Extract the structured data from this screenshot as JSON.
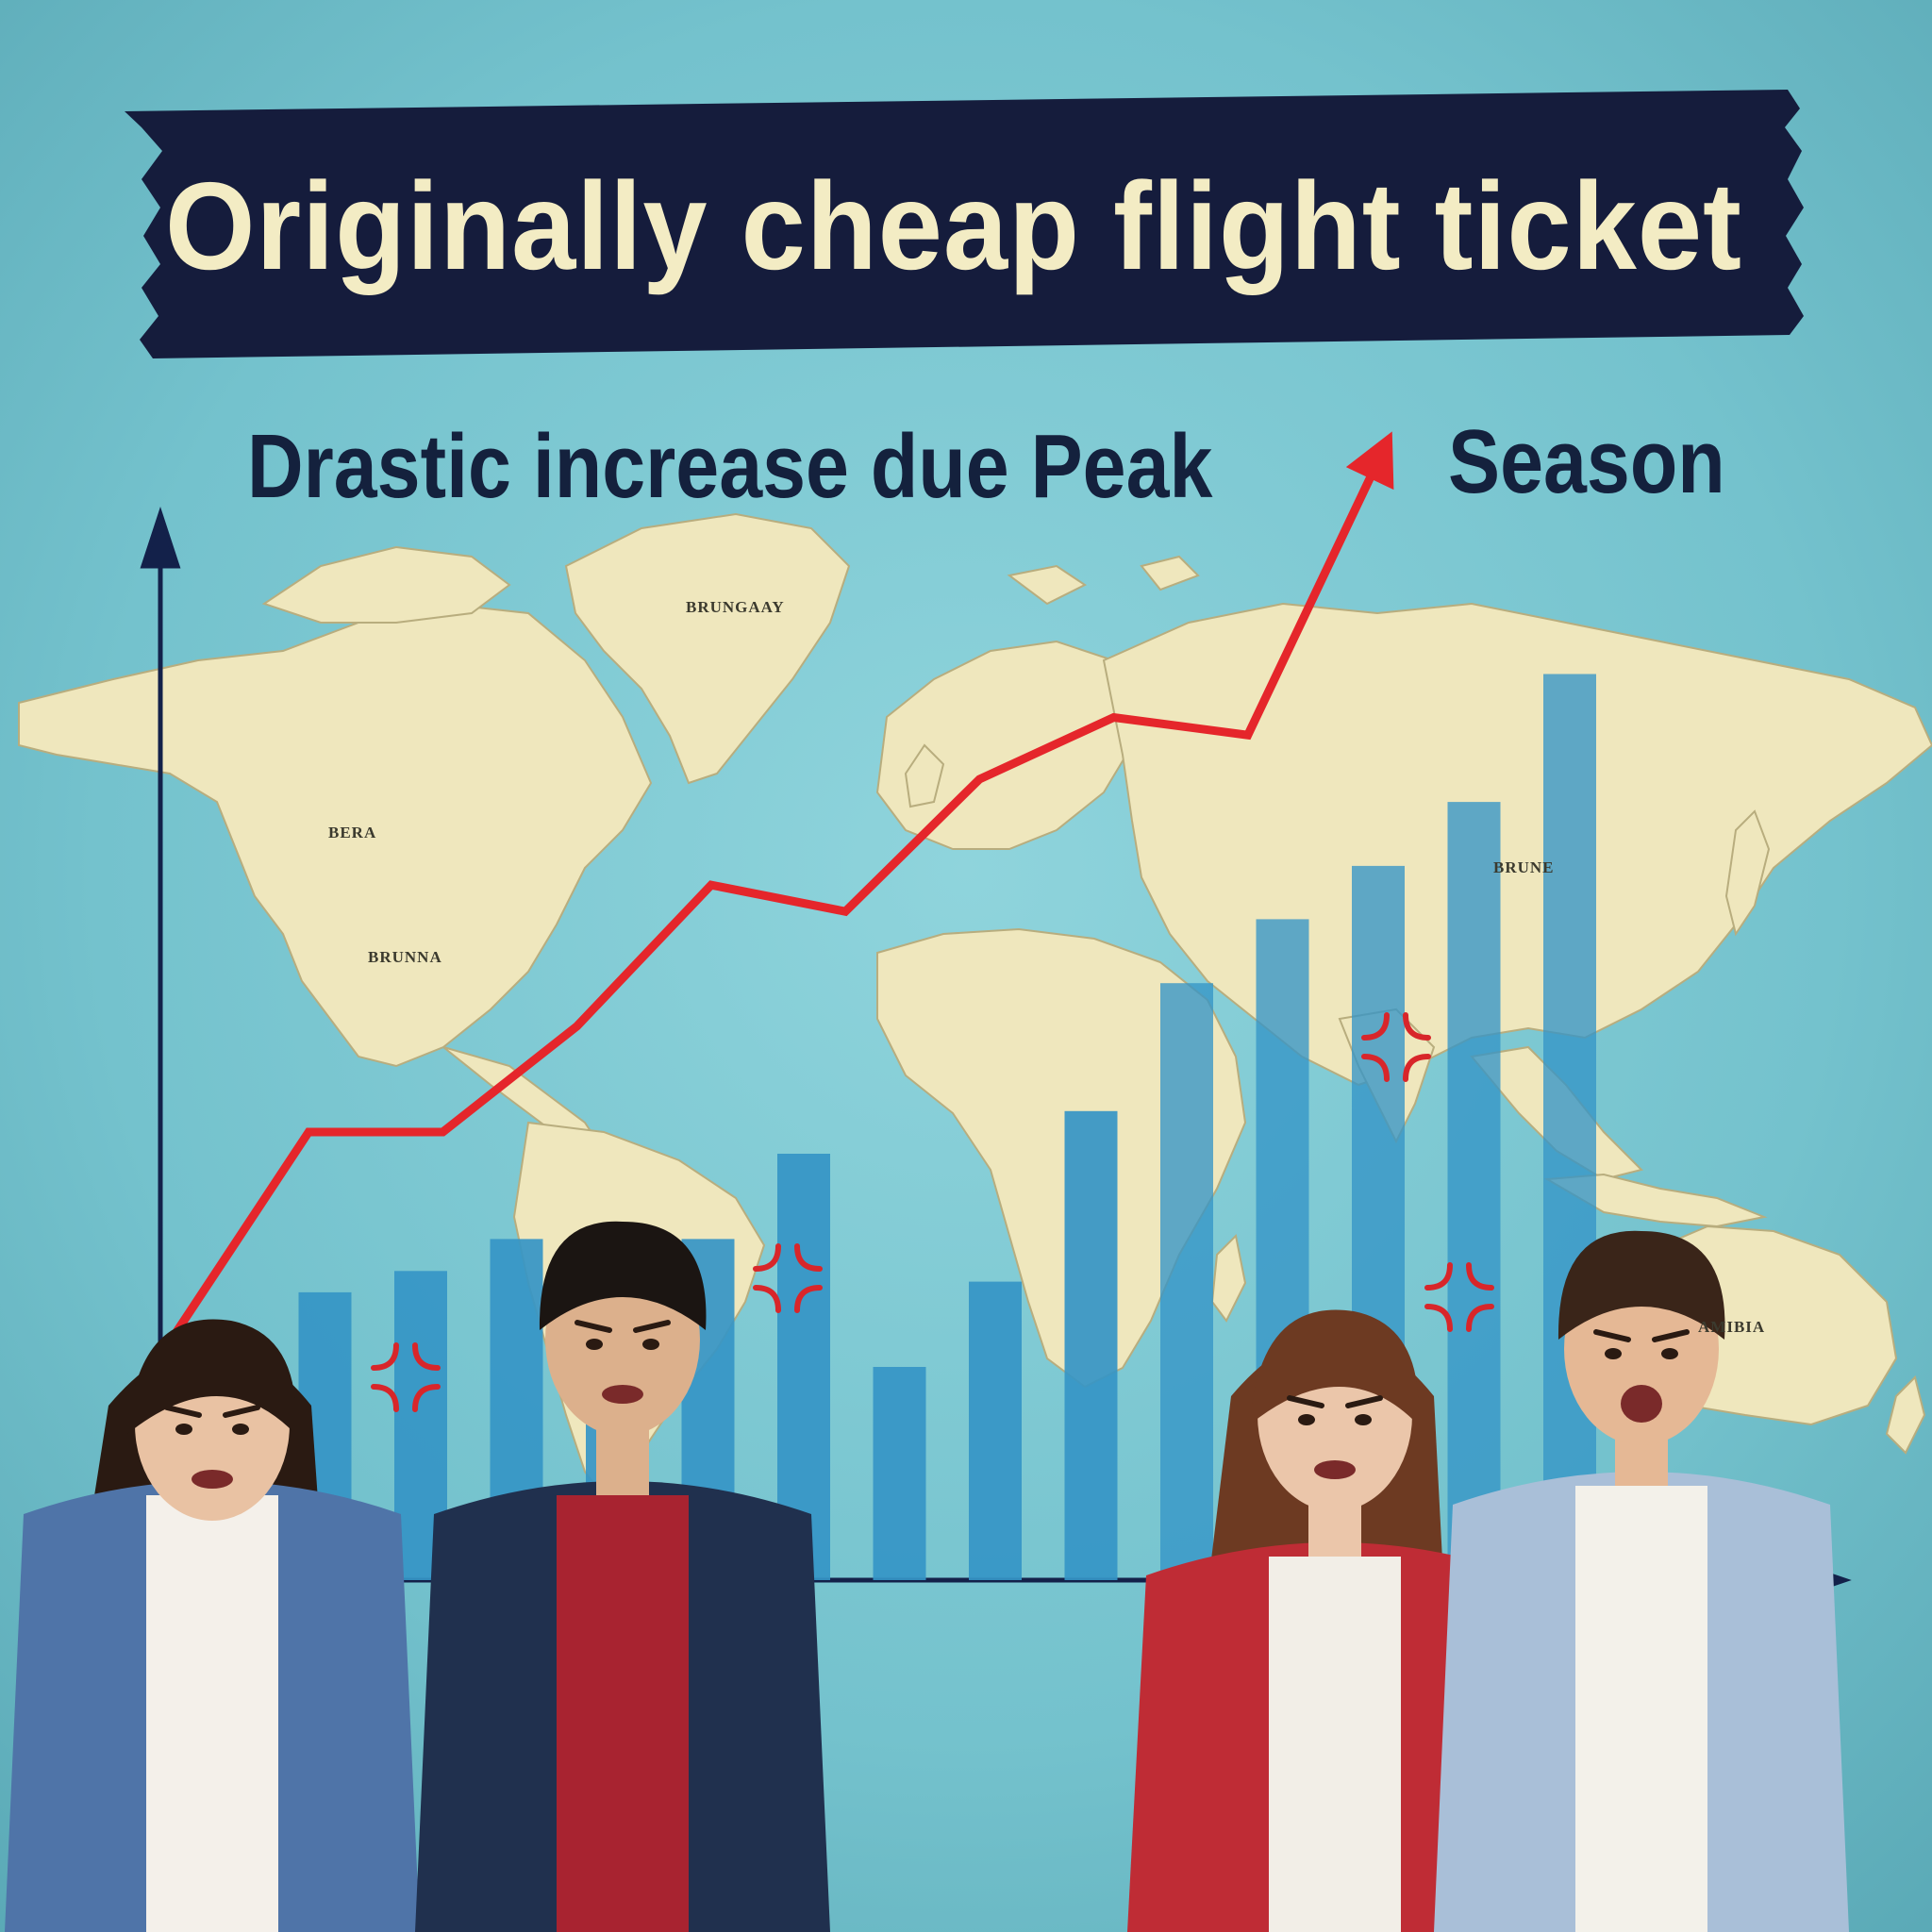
{
  "poster": {
    "title": "Originally cheap flight ticket",
    "subtitle_part1": "Drastic increase due Peak",
    "subtitle_part2": "Season"
  },
  "map_labels": {
    "greenland": "BRUNGAAY",
    "north_america_1": "BERA",
    "north_america_2": "BRUNNA",
    "asia": "BRUNE",
    "australia": "AMIBIA"
  },
  "colors": {
    "background": "#72c3cf",
    "banner": "#151c3c",
    "banner_text": "#f3ecc4",
    "subtitle_text": "#14213d",
    "land": "#efe7bd",
    "bar": "#3595c6",
    "trend_arrow": "#e5262b",
    "anger_mark": "#d8262a"
  },
  "chart_data": {
    "type": "bar",
    "title": "",
    "xlabel": "",
    "ylabel": "",
    "ylim": [
      0,
      100
    ],
    "values": [
      16,
      27,
      29,
      32,
      31,
      32,
      40,
      20,
      28,
      44,
      56,
      62,
      67,
      73,
      85
    ],
    "trend_line": [
      0,
      23,
      23,
      35,
      51,
      48,
      63,
      70,
      68,
      100
    ],
    "grid": false,
    "legend": "none"
  },
  "people": [
    {
      "name": "woman-left",
      "expression": "angry"
    },
    {
      "name": "man-center",
      "expression": "angry"
    },
    {
      "name": "woman-right",
      "expression": "confused"
    },
    {
      "name": "man-right",
      "expression": "shouting"
    }
  ],
  "icons": [
    "anger-mark-icon"
  ]
}
